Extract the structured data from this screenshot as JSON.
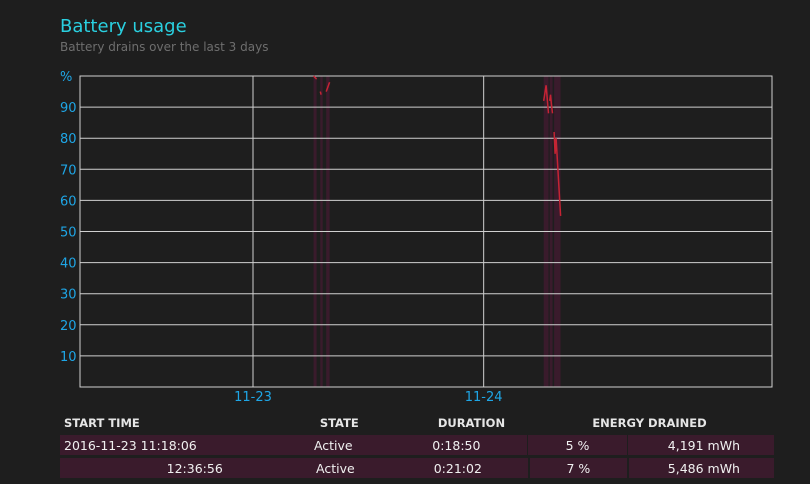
{
  "header": {
    "title": "Battery usage",
    "subtitle": "Battery drains over the last 3 days"
  },
  "chart_data": {
    "type": "line",
    "y_unit_label": "%",
    "yticks": [
      10,
      20,
      30,
      40,
      50,
      60,
      70,
      80,
      90
    ],
    "ylim": [
      0,
      100
    ],
    "xlim": [
      "2016-11-22T11:00",
      "2016-11-25T11:00"
    ],
    "xticks": [
      {
        "label": "11-23",
        "x": "2016-11-23T05:00"
      },
      {
        "label": "11-24",
        "x": "2016-11-24T05:00"
      }
    ],
    "grid": true,
    "colors": {
      "line": "#c62434",
      "shade": "#3a1b2c",
      "grid": "#d0d0d0",
      "ticks": "#1ea6e6"
    },
    "active_periods": [
      {
        "start": "2016-11-23T11:18",
        "end": "2016-11-23T11:37"
      },
      {
        "start": "2016-11-23T12:00",
        "end": "2016-11-23T12:15"
      },
      {
        "start": "2016-11-23T12:37",
        "end": "2016-11-23T12:58"
      },
      {
        "start": "2016-11-24T11:15",
        "end": "2016-11-24T11:45"
      },
      {
        "start": "2016-11-24T11:52",
        "end": "2016-11-24T12:10"
      },
      {
        "start": "2016-11-24T12:20",
        "end": "2016-11-24T13:00"
      }
    ],
    "series": [
      {
        "points": [
          [
            "2016-11-23T11:18",
            100
          ],
          [
            "2016-11-23T11:37",
            99
          ]
        ]
      },
      {
        "points": [
          [
            "2016-11-23T12:00",
            95
          ],
          [
            "2016-11-23T12:05",
            94
          ]
        ]
      },
      {
        "points": [
          [
            "2016-11-23T12:37",
            95
          ],
          [
            "2016-11-23T12:58",
            98
          ]
        ]
      },
      {
        "points": [
          [
            "2016-11-24T11:15",
            92
          ],
          [
            "2016-11-24T11:30",
            97
          ],
          [
            "2016-11-24T11:45",
            88
          ]
        ]
      },
      {
        "points": [
          [
            "2016-11-24T11:52",
            92
          ],
          [
            "2016-11-24T11:57",
            94
          ],
          [
            "2016-11-24T12:03",
            91
          ],
          [
            "2016-11-24T12:10",
            88
          ]
        ]
      },
      {
        "points": [
          [
            "2016-11-24T12:20",
            82
          ],
          [
            "2016-11-24T12:26",
            75
          ],
          [
            "2016-11-24T12:32",
            80
          ],
          [
            "2016-11-24T13:00",
            55
          ]
        ]
      }
    ]
  },
  "table": {
    "headers": [
      "START TIME",
      "STATE",
      "DURATION",
      "ENERGY DRAINED"
    ],
    "rows": [
      {
        "start": "2016-11-23  11:18:06",
        "state": "Active",
        "duration": "0:18:50",
        "percent": "5 %",
        "energy": "4,191 mWh"
      },
      {
        "start": "12:36:56",
        "state": "Active",
        "duration": "0:21:02",
        "percent": "7 %",
        "energy": "5,486 mWh"
      }
    ]
  }
}
